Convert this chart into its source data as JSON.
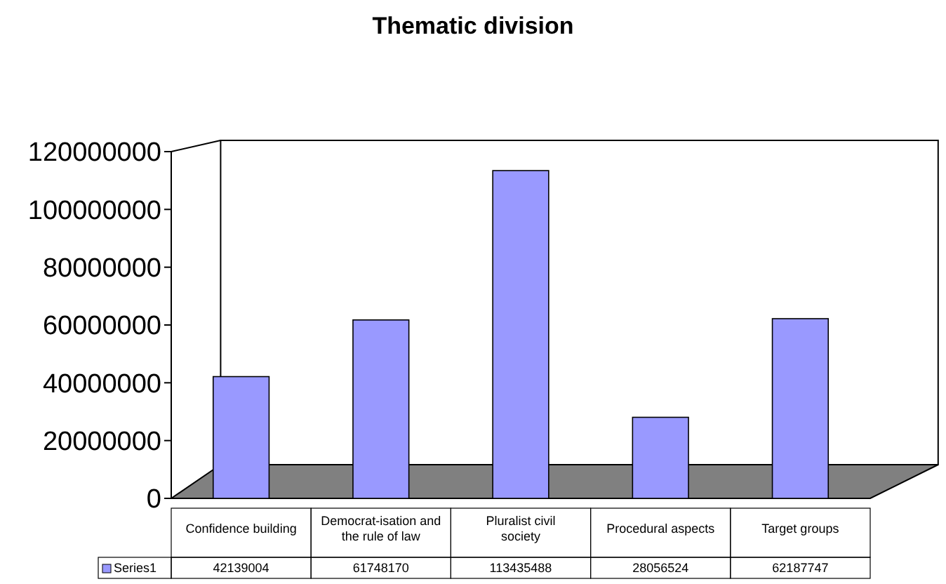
{
  "chart_data": {
    "type": "bar",
    "title": "Thematic division",
    "categories": [
      "Confidence building",
      "Democrat-isation and the rule of law",
      "Pluralist civil society",
      "Procedural aspects",
      "Target groups"
    ],
    "series": [
      {
        "name": "Series1",
        "color": "#9999ff",
        "values": [
          42139004,
          61748170,
          113435488,
          28056524,
          62187747
        ]
      }
    ],
    "ylim": [
      0,
      120000000
    ],
    "yticks": [
      0,
      20000000,
      40000000,
      60000000,
      80000000,
      100000000,
      120000000
    ],
    "data_labels": true,
    "grid": false
  }
}
